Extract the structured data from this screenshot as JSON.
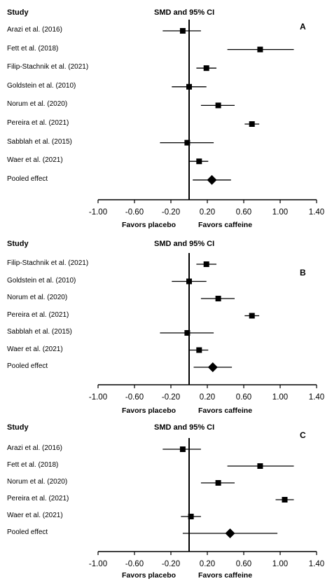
{
  "chart_data": [
    {
      "type": "forest",
      "panel_label": "A",
      "header_study": "Study",
      "header_effect": "SMD and 95% CI",
      "favors_left": "Favors placebo",
      "favors_right": "Favors caffeine",
      "xlim": [
        -1.0,
        1.4
      ],
      "ticks": [
        -1.0,
        -0.6,
        -0.2,
        0.2,
        0.6,
        1.0,
        1.4
      ],
      "tick_labels": [
        "-1.00",
        "-0.60",
        "-0.20",
        "0.20",
        "0.60",
        "1.00",
        "1.40"
      ],
      "studies": [
        {
          "label": "Arazi et al. (2016)",
          "smd": -0.07,
          "lo": -0.29,
          "hi": 0.13
        },
        {
          "label": "Fett et al. (2018)",
          "smd": 0.78,
          "lo": 0.42,
          "hi": 1.15
        },
        {
          "label": "Filip-Stachnik et al. (2021)",
          "smd": 0.19,
          "lo": 0.08,
          "hi": 0.3
        },
        {
          "label": "Goldstein et al. (2010)",
          "smd": 0.0,
          "lo": -0.19,
          "hi": 0.19
        },
        {
          "label": "Norum et al. (2020)",
          "smd": 0.32,
          "lo": 0.13,
          "hi": 0.5
        },
        {
          "label": "Pereira et al. (2021)",
          "smd": 0.69,
          "lo": 0.61,
          "hi": 0.77
        },
        {
          "label": "Sabblah et al. (2015)",
          "smd": -0.02,
          "lo": -0.32,
          "hi": 0.27
        },
        {
          "label": "Waer et al. (2021)",
          "smd": 0.11,
          "lo": 0.0,
          "hi": 0.21
        }
      ],
      "pooled": {
        "label": "Pooled effect",
        "smd": 0.25,
        "lo": 0.04,
        "hi": 0.46
      }
    },
    {
      "type": "forest",
      "panel_label": "B",
      "header_study": "Study",
      "header_effect": "SMD and 95% CI",
      "favors_left": "Favors placebo",
      "favors_right": "Favors caffeine",
      "xlim": [
        -1.0,
        1.4
      ],
      "ticks": [
        -1.0,
        -0.6,
        -0.2,
        0.2,
        0.6,
        1.0,
        1.4
      ],
      "tick_labels": [
        "-1.00",
        "-0.60",
        "-0.20",
        "0.20",
        "0.60",
        "1.00",
        "1.40"
      ],
      "studies": [
        {
          "label": "Filip-Stachnik et al. (2021)",
          "smd": 0.19,
          "lo": 0.08,
          "hi": 0.3
        },
        {
          "label": "Goldstein et al. (2010)",
          "smd": 0.0,
          "lo": -0.19,
          "hi": 0.19
        },
        {
          "label": "Norum et al. (2020)",
          "smd": 0.32,
          "lo": 0.13,
          "hi": 0.5
        },
        {
          "label": "Pereira et al. (2021)",
          "smd": 0.69,
          "lo": 0.61,
          "hi": 0.77
        },
        {
          "label": "Sabblah et al. (2015)",
          "smd": -0.02,
          "lo": -0.32,
          "hi": 0.27
        },
        {
          "label": "Waer et al. (2021)",
          "smd": 0.11,
          "lo": 0.0,
          "hi": 0.21
        }
      ],
      "pooled": {
        "label": "Pooled effect",
        "smd": 0.26,
        "lo": 0.05,
        "hi": 0.47
      }
    },
    {
      "type": "forest",
      "panel_label": "C",
      "header_study": "Study",
      "header_effect": "SMD and 95% CI",
      "favors_left": "Favors placebo",
      "favors_right": "Favors caffeine",
      "xlim": [
        -1.0,
        1.4
      ],
      "ticks": [
        -1.0,
        -0.6,
        -0.2,
        0.2,
        0.6,
        1.0,
        1.4
      ],
      "tick_labels": [
        "-1.00",
        "-0.60",
        "-0.20",
        "0.20",
        "0.60",
        "1.00",
        "1.40"
      ],
      "studies": [
        {
          "label": "Arazi et al. (2016)",
          "smd": -0.07,
          "lo": -0.29,
          "hi": 0.13
        },
        {
          "label": "Fett et al. (2018)",
          "smd": 0.78,
          "lo": 0.42,
          "hi": 1.15
        },
        {
          "label": "Norum et al. (2020)",
          "smd": 0.32,
          "lo": 0.13,
          "hi": 0.5
        },
        {
          "label": "Pereira et al. (2021)",
          "smd": 1.05,
          "lo": 0.95,
          "hi": 1.15
        },
        {
          "label": "Waer et al. (2021)",
          "smd": 0.02,
          "lo": -0.09,
          "hi": 0.13
        }
      ],
      "pooled": {
        "label": "Pooled effect",
        "smd": 0.45,
        "lo": -0.07,
        "hi": 0.97
      }
    }
  ]
}
